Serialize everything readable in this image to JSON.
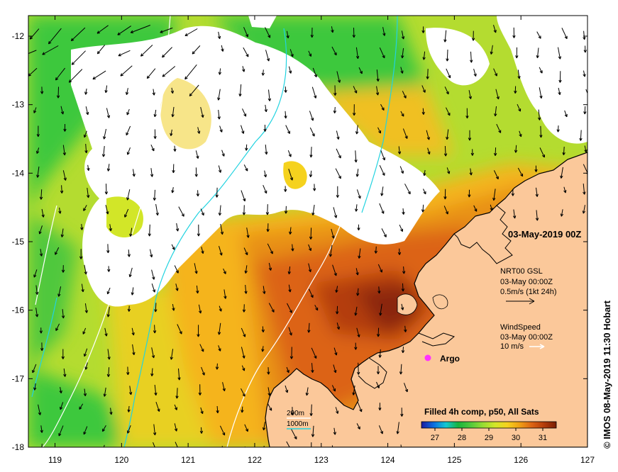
{
  "map": {
    "lon_min": 118.6,
    "lon_max": 127,
    "lat_min": -18,
    "lat_max": -11.7,
    "x_ticks": [
      "119",
      "120",
      "121",
      "122",
      "123",
      "124",
      "125",
      "126",
      "127"
    ],
    "y_ticks": [
      "-12",
      "-13",
      "-14",
      "-15",
      "-16",
      "-17",
      "-18"
    ],
    "colors": {
      "land": "#fbc89a",
      "cloud": "#ffffff",
      "coast": "#000000",
      "isobath_200": "#ffffff",
      "isobath_1000": "#22d3e0",
      "argo": "#ff33ff"
    }
  },
  "labels": {
    "date_title": "03-May-2019 00Z",
    "current": {
      "title": "NRT00 GSL",
      "time": "03-May 00:00Z",
      "scale": "0.5m/s (1kt 24h)"
    },
    "wind": {
      "title": "WindSpeed",
      "time": "03-May 00:00Z",
      "scale": "10 m/s"
    },
    "argo": "Argo",
    "isobath_200": "200m",
    "isobath_1000": "1000m",
    "sst_title": "Filled 4h comp, p50, All Sats",
    "colorbar_ticks": [
      "27",
      "28",
      "29",
      "30",
      "31"
    ],
    "credit": "© IMOS 08-May-2019 11:30 Hobart"
  },
  "colorbar": {
    "min": 26.5,
    "max": 31.5,
    "ticks": [
      27,
      28,
      29,
      30,
      31
    ],
    "stops": [
      "#1a1aa0",
      "#0a6ee0",
      "#14c8d2",
      "#18b43c",
      "#50c83c",
      "#96dc32",
      "#d2e628",
      "#f5d21e",
      "#f0a014",
      "#dc6414",
      "#b43c0a",
      "#781e05"
    ]
  }
}
